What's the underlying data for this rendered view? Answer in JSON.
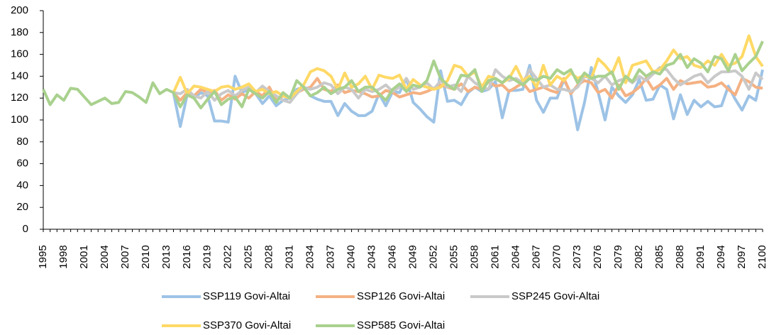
{
  "chart_data": {
    "type": "line",
    "categories": [
      "1995",
      null,
      null,
      "1998",
      null,
      null,
      "2001",
      null,
      null,
      "2004",
      null,
      null,
      "2007",
      null,
      null,
      "2010",
      null,
      null,
      "2013",
      null,
      null,
      "2016",
      null,
      null,
      "2019",
      null,
      null,
      "2022",
      null,
      null,
      "2025",
      null,
      null,
      "2028",
      null,
      null,
      "2031",
      null,
      null,
      "2034",
      null,
      null,
      "2037",
      null,
      null,
      "2040",
      null,
      null,
      "2043",
      null,
      null,
      "2046",
      null,
      null,
      "2049",
      null,
      null,
      "2052",
      null,
      null,
      "2055",
      null,
      null,
      "2058",
      null,
      null,
      "2061",
      null,
      null,
      "2064",
      null,
      null,
      "2067",
      null,
      null,
      "2070",
      null,
      null,
      "2073",
      null,
      null,
      "2076",
      null,
      null,
      "2079",
      null,
      null,
      "2082",
      null,
      null,
      "2085",
      null,
      null,
      "2088",
      null,
      null,
      "2091",
      null,
      null,
      "2094",
      null,
      null,
      "2097",
      null,
      null,
      "2100"
    ],
    "series": [
      {
        "name": "SSP119 Govi-Altai",
        "color": "#9dc3e6",
        "values": [
          null,
          null,
          null,
          null,
          null,
          null,
          null,
          null,
          null,
          null,
          null,
          null,
          null,
          null,
          null,
          null,
          null,
          null,
          null,
          125,
          94,
          123,
          120,
          125,
          122,
          99,
          99,
          98,
          140,
          125,
          128,
          124,
          115,
          122,
          113,
          118,
          120,
          128,
          130,
          122,
          119,
          117,
          117,
          104,
          115,
          108,
          104,
          104,
          108,
          124,
          113,
          126,
          125,
          138,
          116,
          110,
          103,
          98,
          145,
          117,
          118,
          114,
          125,
          130,
          126,
          128,
          135,
          102,
          127,
          127,
          128,
          150,
          118,
          107,
          120,
          120,
          137,
          124,
          91,
          116,
          148,
          125,
          100,
          130,
          122,
          116,
          123,
          137,
          118,
          119,
          132,
          128,
          101,
          123,
          105,
          118,
          112,
          117,
          112,
          113,
          131,
          119,
          109,
          122,
          118,
          146
        ]
      },
      {
        "name": "SSP126 Govi-Altai",
        "color": "#f4b183",
        "values": [
          null,
          null,
          null,
          null,
          null,
          null,
          null,
          null,
          null,
          null,
          null,
          null,
          null,
          null,
          null,
          null,
          null,
          null,
          null,
          125,
          118,
          125,
          122,
          128,
          125,
          127,
          118,
          123,
          119,
          124,
          120,
          126,
          122,
          130,
          118,
          122,
          120,
          125,
          128,
          130,
          138,
          128,
          126,
          132,
          125,
          127,
          126,
          124,
          121,
          122,
          127,
          125,
          121,
          123,
          125,
          124,
          126,
          129,
          132,
          130,
          128,
          133,
          126,
          130,
          128,
          135,
          131,
          132,
          126,
          130,
          134,
          126,
          128,
          130,
          127,
          125,
          138,
          124,
          132,
          136,
          134,
          125,
          128,
          120,
          132,
          122,
          125,
          130,
          138,
          128,
          132,
          138,
          128,
          136,
          133,
          134,
          135,
          130,
          131,
          134,
          128,
          123,
          138,
          135,
          130,
          129
        ]
      },
      {
        "name": "SSP245 Govi-Altai",
        "color": "#c9c9c9",
        "values": [
          null,
          null,
          null,
          null,
          null,
          null,
          null,
          null,
          null,
          null,
          null,
          null,
          null,
          null,
          null,
          null,
          null,
          null,
          null,
          125,
          124,
          128,
          122,
          120,
          126,
          118,
          124,
          127,
          122,
          127,
          130,
          125,
          131,
          126,
          122,
          118,
          116,
          124,
          130,
          128,
          130,
          134,
          132,
          124,
          130,
          128,
          120,
          128,
          126,
          128,
          132,
          126,
          130,
          138,
          128,
          130,
          134,
          128,
          136,
          130,
          132,
          126,
          140,
          134,
          130,
          128,
          146,
          140,
          136,
          138,
          134,
          146,
          138,
          130,
          132,
          128,
          128,
          126,
          130,
          140,
          138,
          134,
          140,
          132,
          136,
          138,
          134,
          140,
          136,
          142,
          148,
          146,
          138,
          132,
          136,
          140,
          142,
          134,
          140,
          144,
          144,
          145,
          140,
          128,
          143,
          137
        ]
      },
      {
        "name": "SSP370 Govi-Altai",
        "color": "#ffd966",
        "values": [
          null,
          null,
          null,
          null,
          null,
          null,
          null,
          null,
          null,
          null,
          null,
          null,
          null,
          null,
          null,
          null,
          null,
          null,
          null,
          125,
          139,
          124,
          131,
          130,
          128,
          126,
          130,
          131,
          128,
          130,
          133,
          126,
          128,
          124,
          126,
          122,
          120,
          126,
          132,
          144,
          147,
          145,
          140,
          128,
          143,
          130,
          133,
          140,
          128,
          141,
          139,
          138,
          141,
          128,
          137,
          132,
          130,
          128,
          130,
          136,
          150,
          148,
          140,
          144,
          130,
          140,
          138,
          134,
          138,
          149,
          136,
          140,
          130,
          150,
          132,
          140,
          136,
          143,
          138,
          141,
          138,
          156,
          150,
          142,
          157,
          134,
          150,
          152,
          154,
          144,
          146,
          154,
          164,
          156,
          158,
          150,
          148,
          154,
          150,
          160,
          150,
          152,
          158,
          177,
          158,
          149
        ]
      },
      {
        "name": "SSP585 Govi-Altai",
        "color": "#a9d18e",
        "values": [
          128,
          114,
          123,
          118,
          129,
          128,
          121,
          114,
          117,
          120,
          115,
          116,
          126,
          125,
          121,
          116,
          134,
          124,
          128,
          125,
          112,
          123,
          120,
          111,
          119,
          126,
          114,
          119,
          121,
          112,
          128,
          124,
          120,
          126,
          116,
          125,
          120,
          136,
          130,
          122,
          125,
          130,
          124,
          128,
          130,
          136,
          126,
          130,
          130,
          124,
          118,
          128,
          133,
          126,
          132,
          130,
          136,
          154,
          138,
          132,
          128,
          141,
          140,
          146,
          126,
          136,
          138,
          134,
          140,
          136,
          132,
          138,
          136,
          140,
          138,
          146,
          142,
          146,
          134,
          143,
          138,
          140,
          140,
          144,
          128,
          140,
          135,
          146,
          140,
          144,
          142,
          150,
          152,
          160,
          148,
          156,
          152,
          144,
          158,
          156,
          145,
          160,
          145,
          152,
          158,
          172
        ]
      }
    ],
    "ylim": [
      0,
      200
    ],
    "yticks": [
      0,
      20,
      40,
      60,
      80,
      100,
      120,
      140,
      160,
      180,
      200
    ],
    "grid": false
  }
}
